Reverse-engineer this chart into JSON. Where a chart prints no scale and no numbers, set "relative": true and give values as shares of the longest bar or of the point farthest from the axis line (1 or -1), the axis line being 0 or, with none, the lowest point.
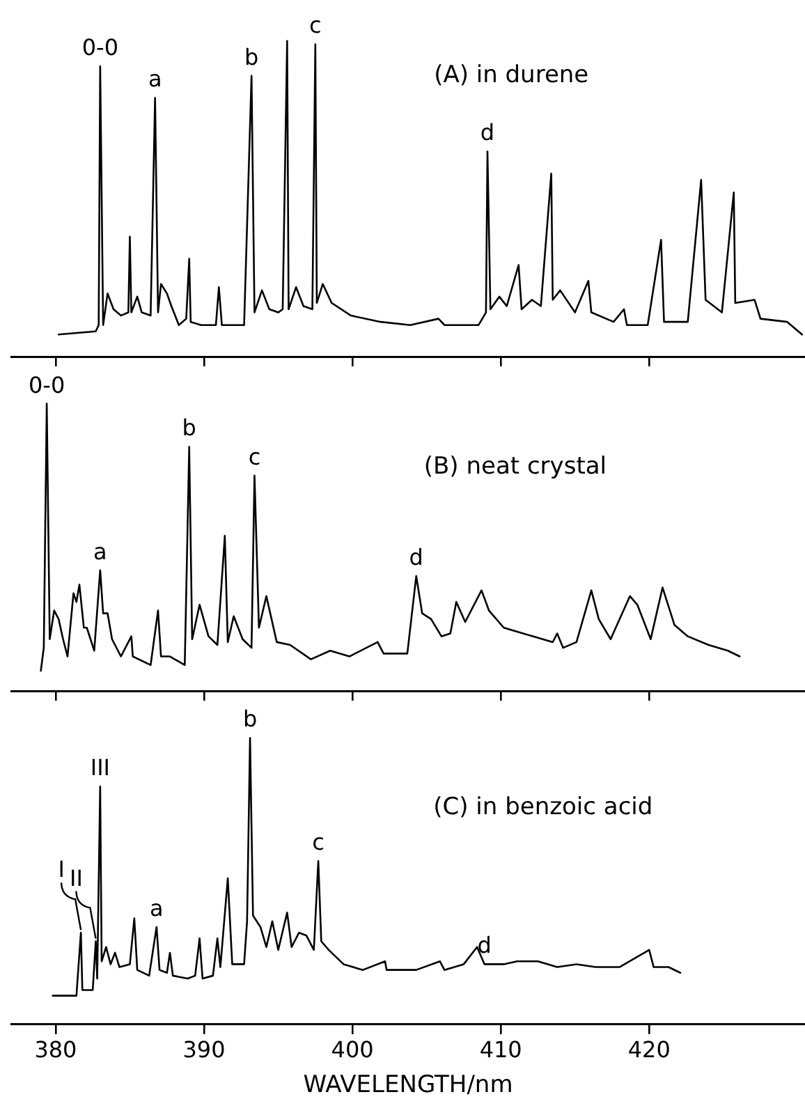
{
  "chart_data": [
    {
      "type": "line",
      "title": "(A) in durene",
      "relative": true,
      "color": "#000000",
      "marker": "none",
      "line_style": "solid",
      "xlim": [
        377,
        430.5
      ],
      "xticks": [
        380,
        390,
        400,
        410,
        420
      ],
      "tick_labels": false,
      "x": [
        380.2,
        382.7,
        382.9,
        383.0,
        383.2,
        383.5,
        383.9,
        384.4,
        384.9,
        385.0,
        385.1,
        385.5,
        385.8,
        386.4,
        386.7,
        386.9,
        387.1,
        387.5,
        387.8,
        388.3,
        388.8,
        389.0,
        389.1,
        389.8,
        390.8,
        391.0,
        391.2,
        392.7,
        393.2,
        393.4,
        393.9,
        394.4,
        395.0,
        395.3,
        395.6,
        395.7,
        396.2,
        396.7,
        397.3,
        397.5,
        397.6,
        398.0,
        398.6,
        399.9,
        401.9,
        403.9,
        405.8,
        406.2,
        408.5,
        409.0,
        409.1,
        409.3,
        409.9,
        410.4,
        411.2,
        411.4,
        412.1,
        412.7,
        413.4,
        413.5,
        414.0,
        415.0,
        415.9,
        416.1,
        417.6,
        418.3,
        418.5,
        419.9,
        420.8,
        421.0,
        422.6,
        423.5,
        423.8,
        424.9,
        425.7,
        425.8,
        427.1,
        427.5,
        429.3,
        430.3
      ],
      "values": [
        0.07,
        0.08,
        0.1,
        0.92,
        0.1,
        0.2,
        0.15,
        0.13,
        0.14,
        0.38,
        0.14,
        0.19,
        0.14,
        0.13,
        0.82,
        0.14,
        0.23,
        0.2,
        0.16,
        0.1,
        0.12,
        0.31,
        0.11,
        0.1,
        0.1,
        0.22,
        0.1,
        0.1,
        0.89,
        0.14,
        0.21,
        0.15,
        0.14,
        0.15,
        1.0,
        0.15,
        0.22,
        0.16,
        0.15,
        0.99,
        0.17,
        0.23,
        0.17,
        0.13,
        0.11,
        0.1,
        0.12,
        0.1,
        0.1,
        0.14,
        0.65,
        0.15,
        0.19,
        0.16,
        0.29,
        0.15,
        0.18,
        0.16,
        0.58,
        0.18,
        0.21,
        0.14,
        0.24,
        0.14,
        0.11,
        0.15,
        0.1,
        0.1,
        0.37,
        0.11,
        0.11,
        0.56,
        0.18,
        0.14,
        0.52,
        0.17,
        0.18,
        0.12,
        0.11,
        0.07
      ],
      "annotations": [
        {
          "text": "0-0",
          "x": 383.0,
          "y": 0.92
        },
        {
          "text": "a",
          "x": 386.7,
          "y": 0.82
        },
        {
          "text": "b",
          "x": 393.2,
          "y": 0.89
        },
        {
          "text": "c",
          "x": 397.5,
          "y": 0.99
        },
        {
          "text": "d",
          "x": 409.1,
          "y": 0.65
        }
      ]
    },
    {
      "type": "line",
      "title": "(B) neat crystal",
      "relative": true,
      "color": "#000000",
      "marker": "none",
      "line_style": "solid",
      "xlim": [
        377,
        430.5
      ],
      "xticks": [
        380,
        390,
        400,
        410,
        420
      ],
      "tick_labels": false,
      "x": [
        379.0,
        379.2,
        379.4,
        379.6,
        379.9,
        380.2,
        380.5,
        380.8,
        381.2,
        381.4,
        381.6,
        381.9,
        382.1,
        382.6,
        383.0,
        383.2,
        383.5,
        383.8,
        384.4,
        384.9,
        385.1,
        385.2,
        386.4,
        386.9,
        387.1,
        387.7,
        388.7,
        389.0,
        389.2,
        389.7,
        390.3,
        390.9,
        391.4,
        391.6,
        392.0,
        392.6,
        393.2,
        393.4,
        393.7,
        394.2,
        394.9,
        395.8,
        397.2,
        398.5,
        399.8,
        401.7,
        402.1,
        403.7,
        404.3,
        404.7,
        405.3,
        406.0,
        406.6,
        407.0,
        407.6,
        408.7,
        409.2,
        410.2,
        411.5,
        413.5,
        413.8,
        414.2,
        415.1,
        416.1,
        416.6,
        417.4,
        418.7,
        419.2,
        420.1,
        420.9,
        421.7,
        422.6,
        424.0,
        425.3,
        426.1
      ],
      "values": [
        0.07,
        0.15,
        1.0,
        0.18,
        0.28,
        0.25,
        0.18,
        0.12,
        0.34,
        0.31,
        0.37,
        0.22,
        0.22,
        0.14,
        0.42,
        0.27,
        0.27,
        0.18,
        0.12,
        0.17,
        0.19,
        0.12,
        0.09,
        0.28,
        0.12,
        0.12,
        0.09,
        0.85,
        0.18,
        0.3,
        0.19,
        0.16,
        0.54,
        0.17,
        0.26,
        0.18,
        0.15,
        0.75,
        0.22,
        0.33,
        0.17,
        0.16,
        0.11,
        0.14,
        0.12,
        0.17,
        0.13,
        0.13,
        0.4,
        0.27,
        0.25,
        0.19,
        0.2,
        0.31,
        0.24,
        0.35,
        0.28,
        0.22,
        0.2,
        0.17,
        0.2,
        0.15,
        0.17,
        0.35,
        0.25,
        0.18,
        0.33,
        0.3,
        0.18,
        0.36,
        0.23,
        0.19,
        0.16,
        0.14,
        0.12
      ],
      "annotations": [
        {
          "text": "0-0",
          "x": 379.4,
          "y": 1.0
        },
        {
          "text": "a",
          "x": 383.0,
          "y": 0.42
        },
        {
          "text": "b",
          "x": 389.0,
          "y": 0.85
        },
        {
          "text": "c",
          "x": 393.4,
          "y": 0.75
        },
        {
          "text": "d",
          "x": 404.3,
          "y": 0.4
        }
      ]
    },
    {
      "type": "line",
      "title": "(C) in benzoic acid",
      "xlabel": "WAVELENGTH/nm",
      "relative": true,
      "color": "#000000",
      "marker": "none",
      "line_style": "solid",
      "xlim": [
        377,
        430.5
      ],
      "xticks": [
        380,
        390,
        400,
        410,
        420
      ],
      "tick_labels": "x",
      "x": [
        379.8,
        381.4,
        381.7,
        381.8,
        382.5,
        382.7,
        382.8,
        383.0,
        383.1,
        383.4,
        383.7,
        384.0,
        384.3,
        385.0,
        385.3,
        385.5,
        386.3,
        386.8,
        387.0,
        387.5,
        387.7,
        387.9,
        388.9,
        389.4,
        389.7,
        389.9,
        390.6,
        390.9,
        391.1,
        391.6,
        391.9,
        392.7,
        392.9,
        393.1,
        393.3,
        393.8,
        394.2,
        394.6,
        395.0,
        395.6,
        395.9,
        396.4,
        396.9,
        397.4,
        397.7,
        397.9,
        398.4,
        399.4,
        400.7,
        402.2,
        402.3,
        404.3,
        405.9,
        406.2,
        407.5,
        408.4,
        408.9,
        410.2,
        411.1,
        412.5,
        413.8,
        415.1,
        416.4,
        418.0,
        420.0,
        420.3,
        421.3,
        422.1
      ],
      "values": [
        0.1,
        0.1,
        0.32,
        0.12,
        0.12,
        0.29,
        0.16,
        0.83,
        0.22,
        0.27,
        0.21,
        0.25,
        0.2,
        0.21,
        0.37,
        0.19,
        0.17,
        0.34,
        0.19,
        0.18,
        0.25,
        0.17,
        0.16,
        0.17,
        0.3,
        0.16,
        0.17,
        0.3,
        0.2,
        0.51,
        0.21,
        0.21,
        0.36,
        1.0,
        0.38,
        0.34,
        0.27,
        0.36,
        0.26,
        0.39,
        0.27,
        0.32,
        0.31,
        0.26,
        0.57,
        0.29,
        0.26,
        0.21,
        0.19,
        0.22,
        0.19,
        0.19,
        0.22,
        0.19,
        0.21,
        0.27,
        0.21,
        0.21,
        0.22,
        0.22,
        0.2,
        0.21,
        0.2,
        0.2,
        0.26,
        0.2,
        0.2,
        0.18
      ],
      "annotations": [
        {
          "text": "I",
          "x": 381.7,
          "y": 0.32
        },
        {
          "text": "II",
          "x": 382.7,
          "y": 0.29
        },
        {
          "text": "III",
          "x": 383.0,
          "y": 0.83
        },
        {
          "text": "a",
          "x": 386.8,
          "y": 0.34
        },
        {
          "text": "b",
          "x": 393.1,
          "y": 1.0
        },
        {
          "text": "c",
          "x": 397.7,
          "y": 0.57
        },
        {
          "text": "d",
          "x": 408.9,
          "y": 0.21
        }
      ]
    }
  ]
}
